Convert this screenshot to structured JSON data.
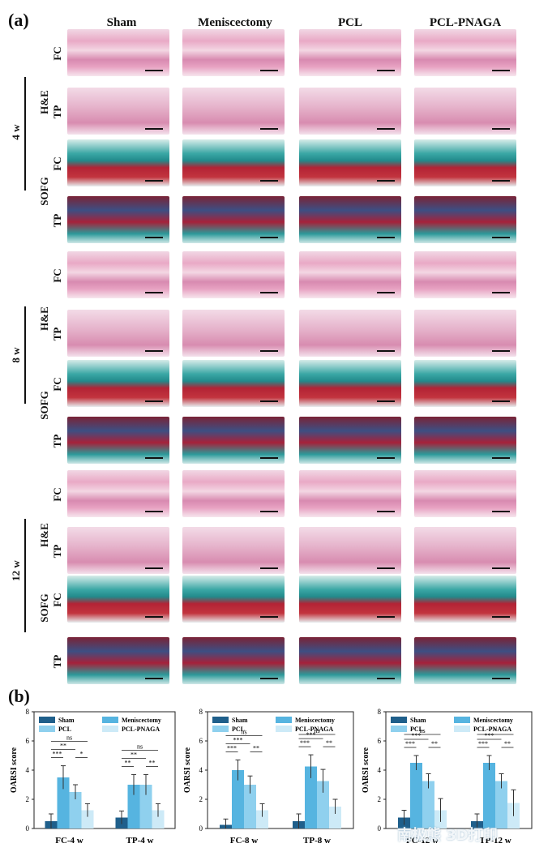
{
  "figure": {
    "panel_a_label": "(a)",
    "panel_b_label": "(b)",
    "columns": [
      "Sham",
      "Meniscectomy",
      "PCL",
      "PCL-PNAGA"
    ],
    "weeks": [
      "4 w",
      "8 w",
      "12 w"
    ],
    "stains": [
      "H&E",
      "SOFG"
    ],
    "rows": [
      "FC",
      "TP",
      "FC",
      "TP",
      "FC",
      "TP",
      "FC",
      "TP",
      "FC",
      "TP",
      "FC",
      "TP"
    ],
    "watermark": "南极熊 3D打印"
  },
  "chart_data": [
    {
      "type": "bar",
      "categories": [
        "FC-4 w",
        "TP-4 w"
      ],
      "ylabel": "OARSI score",
      "ylim": [
        0,
        8
      ],
      "yticks": [
        "0",
        "2",
        "4",
        "6",
        "8"
      ],
      "legend": [
        "Sham",
        "Meniscectomy",
        "PCL",
        "PCL-PNAGA"
      ],
      "series": [
        {
          "name": "Sham",
          "color": "#1f5f8b",
          "values": [
            0.5,
            0.75
          ],
          "errors": [
            0.5,
            0.45
          ]
        },
        {
          "name": "Meniscectomy",
          "color": "#56b4e0",
          "values": [
            3.5,
            3.0
          ],
          "errors": [
            0.8,
            0.7
          ]
        },
        {
          "name": "PCL",
          "color": "#8fd0ee",
          "values": [
            2.5,
            3.0
          ],
          "errors": [
            0.5,
            0.7
          ]
        },
        {
          "name": "PCL-PNAGA",
          "color": "#cdeaf7",
          "values": [
            1.25,
            1.25
          ],
          "errors": [
            0.45,
            0.45
          ]
        }
      ],
      "significance": [
        [
          "***",
          "ns",
          "**",
          "*"
        ],
        [
          "**",
          "ns",
          "**",
          "**"
        ]
      ]
    },
    {
      "type": "bar",
      "categories": [
        "FC-8 w",
        "TP-8 w"
      ],
      "ylabel": "OARSI score",
      "ylim": [
        0,
        8
      ],
      "yticks": [
        "0",
        "2",
        "4",
        "6",
        "8"
      ],
      "legend": [
        "Sham",
        "Meniscectomy",
        "PCL",
        "PCL-PNAGA"
      ],
      "series": [
        {
          "name": "Sham",
          "color": "#1f5f8b",
          "values": [
            0.25,
            0.5
          ],
          "errors": [
            0.4,
            0.5
          ]
        },
        {
          "name": "Meniscectomy",
          "color": "#56b4e0",
          "values": [
            4.0,
            4.25
          ],
          "errors": [
            0.7,
            0.8
          ]
        },
        {
          "name": "PCL",
          "color": "#8fd0ee",
          "values": [
            3.0,
            3.25
          ],
          "errors": [
            0.6,
            0.8
          ]
        },
        {
          "name": "PCL-PNAGA",
          "color": "#cdeaf7",
          "values": [
            1.25,
            1.5
          ],
          "errors": [
            0.45,
            0.5
          ]
        }
      ],
      "significance": [
        [
          "***",
          "ns",
          "***",
          "**"
        ],
        [
          "***",
          "ns",
          "***",
          "**"
        ]
      ]
    },
    {
      "type": "bar",
      "categories": [
        "FC-12 w",
        "TP-12 w"
      ],
      "ylabel": "OARSI score",
      "ylim": [
        0,
        8
      ],
      "yticks": [
        "0",
        "2",
        "4",
        "6",
        "8"
      ],
      "legend": [
        "Sham",
        "Meniscectomy",
        "PCL",
        "PCL-PNAGA"
      ],
      "series": [
        {
          "name": "Sham",
          "color": "#1f5f8b",
          "values": [
            0.75,
            0.5
          ],
          "errors": [
            0.5,
            0.5
          ]
        },
        {
          "name": "Meniscectomy",
          "color": "#56b4e0",
          "values": [
            4.5,
            4.5
          ],
          "errors": [
            0.5,
            0.5
          ]
        },
        {
          "name": "PCL",
          "color": "#8fd0ee",
          "values": [
            3.25,
            3.25
          ],
          "errors": [
            0.5,
            0.5
          ]
        },
        {
          "name": "PCL-PNAGA",
          "color": "#cdeaf7",
          "values": [
            1.25,
            1.75
          ],
          "errors": [
            0.8,
            0.9
          ]
        }
      ],
      "significance": [
        [
          "***",
          "ns",
          "***",
          "**"
        ],
        [
          "***",
          "*",
          "***",
          "**"
        ]
      ]
    }
  ]
}
